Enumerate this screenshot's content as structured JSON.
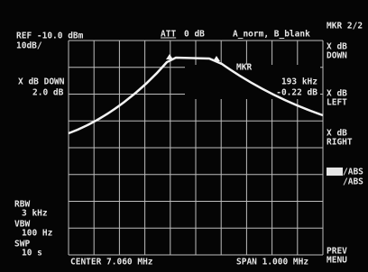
{
  "header": {
    "ref": "REF -10.0 dBm",
    "scale": "10dB/",
    "att_label": "ATT",
    "att_value": "0 dB",
    "trace_mode": "A_norm, B_blank",
    "menu_title": "MKR 2/2"
  },
  "readout": {
    "function": "X dB DOWN",
    "value": "2.0 dB",
    "marker": "MKR",
    "freq": "193 kHz",
    "level": "-0.22 dB"
  },
  "softkeys": [
    [
      "X dB",
      "DOWN"
    ],
    [
      "X dB",
      "LEFT"
    ],
    [
      "X dB",
      "RIGHT"
    ],
    [
      "/ABS",
      "/ABS"
    ],
    [
      "PREV",
      "MENU"
    ]
  ],
  "settings": {
    "rbw_label": "RBW",
    "rbw": "3 kHz",
    "vbw_label": "VBW",
    "vbw": "100 Hz",
    "swp_label": "SWP",
    "swp": "10 s"
  },
  "footer": {
    "center": "CENTER 7.060 MHz",
    "span": "SPAN 1.000 MHz"
  }
}
